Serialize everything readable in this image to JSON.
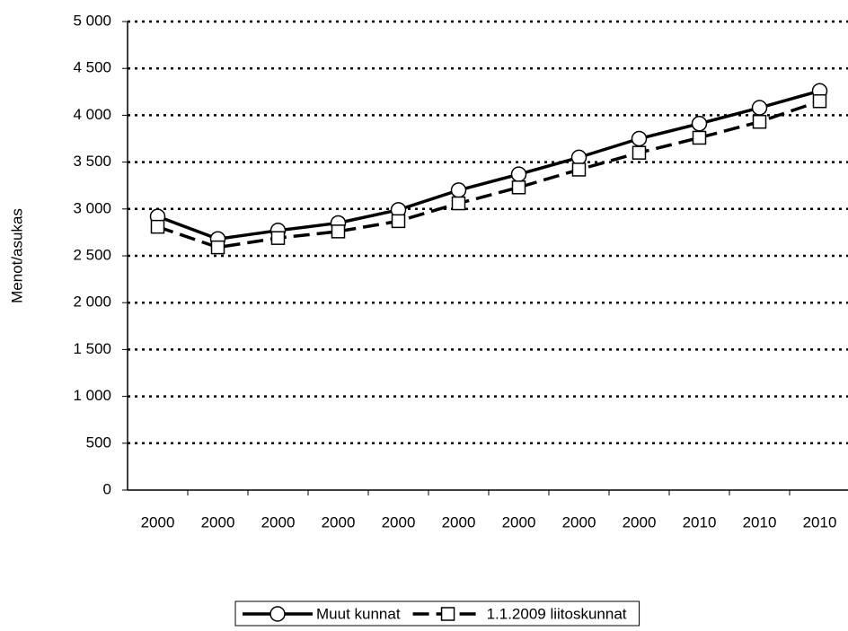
{
  "chart_data": {
    "type": "line",
    "y_label": "Menot/asukas",
    "categories": [
      "2000",
      "2000",
      "2000",
      "2000",
      "2000",
      "2000",
      "2000",
      "2000",
      "2000",
      "2010",
      "2010",
      "2010"
    ],
    "series": [
      {
        "name": "Muut kunnat",
        "color": "#000000",
        "dash": "solid",
        "marker": "circle",
        "values": [
          2920,
          2680,
          2770,
          2850,
          2990,
          3200,
          3370,
          3550,
          3750,
          3910,
          4080,
          4260
        ]
      },
      {
        "name": "1.1.2009 liitoskunnat",
        "color": "#000000",
        "dash": "dashed",
        "marker": "square",
        "values": [
          2810,
          2590,
          2690,
          2760,
          2870,
          3060,
          3230,
          3420,
          3600,
          3760,
          3930,
          4150
        ]
      }
    ],
    "ylim": [
      0,
      5000
    ],
    "yticks": [
      0,
      500,
      {
        "value": 1000,
        "label": "1 000"
      },
      {
        "value": 1500,
        "label": "1 500"
      },
      {
        "value": 2000,
        "label": "2 000"
      },
      {
        "value": 2500,
        "label": "2 500"
      },
      {
        "value": 3000,
        "label": "3 000"
      },
      {
        "value": 3500,
        "label": "3 500"
      },
      {
        "value": 4000,
        "label": "4 000"
      },
      {
        "value": 4500,
        "label": "4 500"
      },
      {
        "value": 5000,
        "label": "5 000"
      }
    ],
    "grid": true,
    "legend": "bottom"
  }
}
